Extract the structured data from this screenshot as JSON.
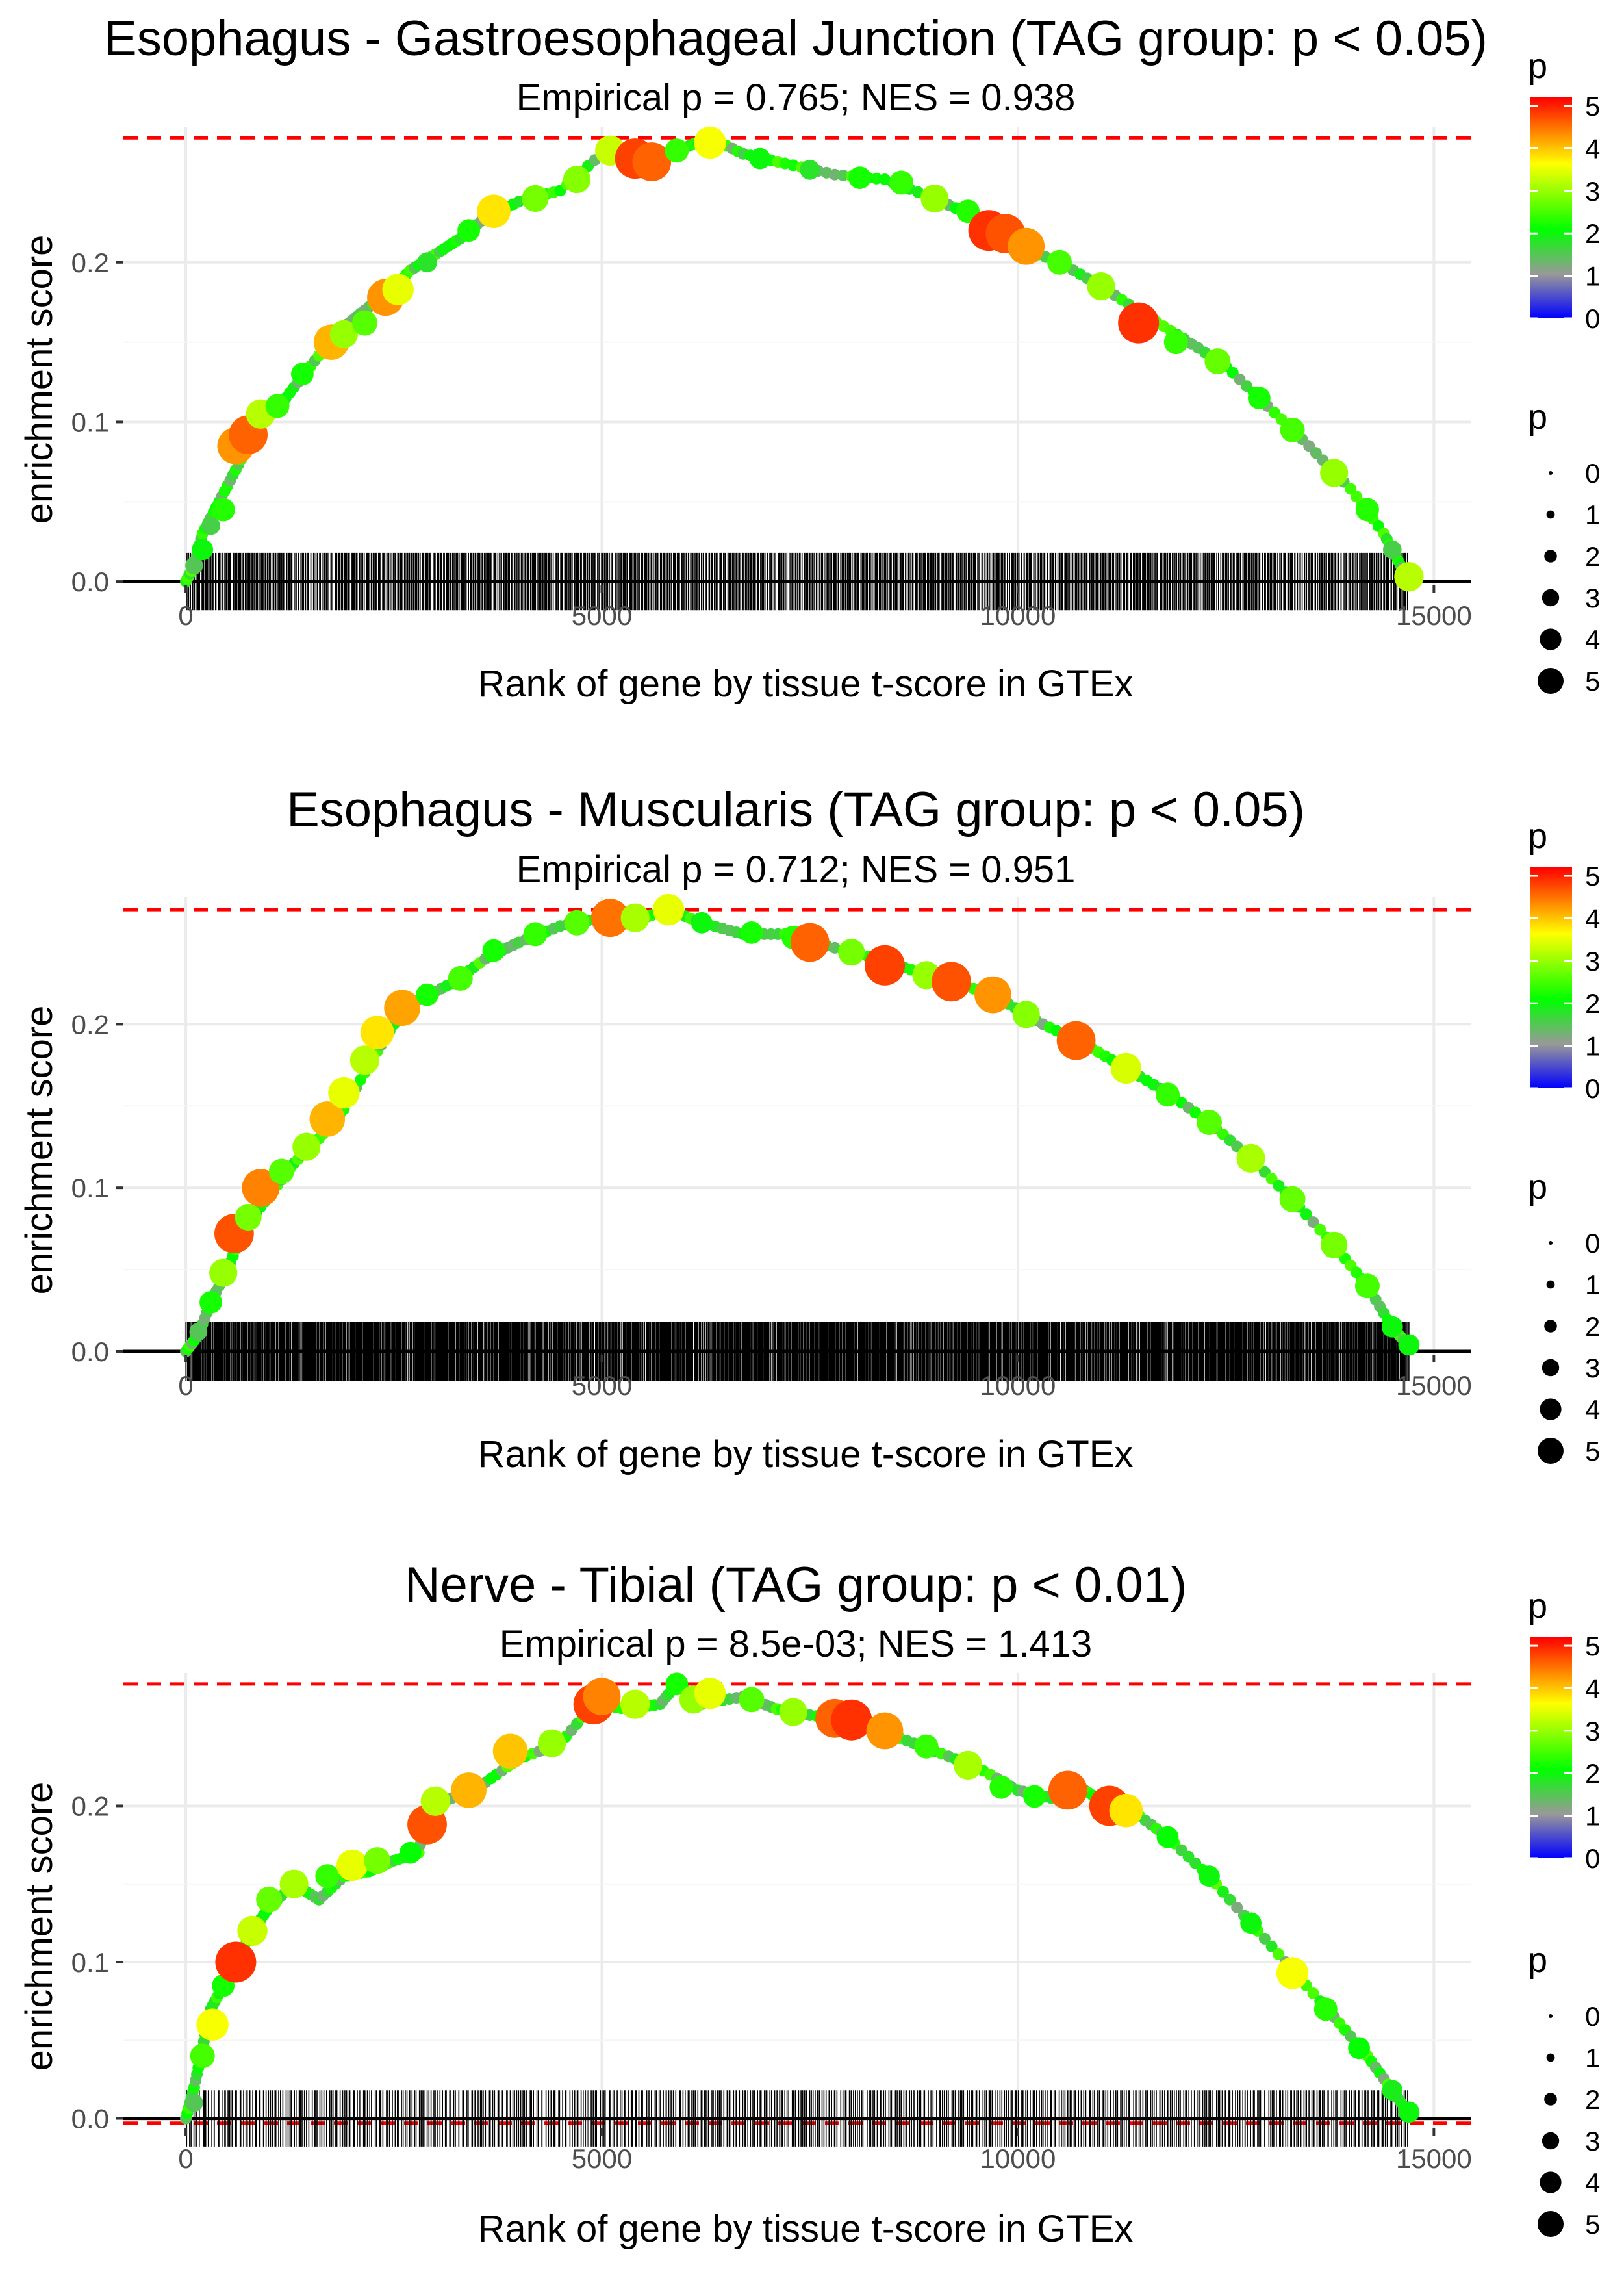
{
  "colors": {
    "max_line": "#ff0000",
    "zero_line": "#000000",
    "running_line": "#b3b3b3",
    "grid": "#ebebeb",
    "rug": "#000000",
    "gradient": [
      "#0000ff",
      "#999999",
      "#00ff00",
      "#ffff00",
      "#ff0000"
    ]
  },
  "chart_data": [
    {
      "type": "line",
      "title": "Esophagus - Gastroesophageal Junction (TAG group: p < 0.05)",
      "subtitle": "Empirical p = 0.765; NES = 0.938",
      "xlabel": "Rank of gene by tissue t-score in GTEx",
      "ylabel": "enrichment score",
      "xlim": [
        -750,
        15450
      ],
      "ylim": [
        -0.002,
        0.285
      ],
      "xticks": [
        0,
        5000,
        10000,
        15000
      ],
      "xtick_labels": [
        "0",
        "5000",
        "10000",
        "15000"
      ],
      "yticks": [
        0.0,
        0.1,
        0.2
      ],
      "ytick_labels": [
        "0.0",
        "0.1",
        "0.2"
      ],
      "max_es": 0.278,
      "min_es": 0.0,
      "n_genes": 14700,
      "rug_count": 900,
      "rug_height": 0.018,
      "curve": [
        [
          0,
          0
        ],
        [
          100,
          0.01
        ],
        [
          200,
          0.03
        ],
        [
          400,
          0.05
        ],
        [
          600,
          0.07
        ],
        [
          800,
          0.09
        ],
        [
          1000,
          0.105
        ],
        [
          1200,
          0.115
        ],
        [
          1500,
          0.135
        ],
        [
          1800,
          0.155
        ],
        [
          2100,
          0.168
        ],
        [
          2400,
          0.18
        ],
        [
          2700,
          0.195
        ],
        [
          3000,
          0.205
        ],
        [
          3300,
          0.215
        ],
        [
          3600,
          0.228
        ],
        [
          4000,
          0.238
        ],
        [
          4500,
          0.245
        ],
        [
          5000,
          0.268
        ],
        [
          5500,
          0.263
        ],
        [
          6000,
          0.272
        ],
        [
          6300,
          0.278
        ],
        [
          6700,
          0.268
        ],
        [
          7200,
          0.262
        ],
        [
          7800,
          0.255
        ],
        [
          8400,
          0.252
        ],
        [
          9000,
          0.24
        ],
        [
          9500,
          0.228
        ],
        [
          10000,
          0.21
        ],
        [
          10500,
          0.2
        ],
        [
          11000,
          0.185
        ],
        [
          11500,
          0.168
        ],
        [
          12000,
          0.152
        ],
        [
          12500,
          0.135
        ],
        [
          13000,
          0.11
        ],
        [
          13500,
          0.085
        ],
        [
          14000,
          0.058
        ],
        [
          14400,
          0.03
        ],
        [
          14600,
          0.01
        ],
        [
          14700,
          0.002
        ]
      ],
      "points": [
        [
          100,
          0.01,
          1.5
        ],
        [
          200,
          0.02,
          2.0
        ],
        [
          300,
          0.035,
          1.6
        ],
        [
          450,
          0.045,
          2.3
        ],
        [
          600,
          0.085,
          4.3
        ],
        [
          750,
          0.092,
          4.6
        ],
        [
          900,
          0.105,
          3.2
        ],
        [
          1100,
          0.11,
          2.4
        ],
        [
          1400,
          0.13,
          2.2
        ],
        [
          1750,
          0.15,
          4.1
        ],
        [
          1900,
          0.155,
          3.0
        ],
        [
          2150,
          0.162,
          2.6
        ],
        [
          2400,
          0.178,
          4.3
        ],
        [
          2550,
          0.183,
          3.5
        ],
        [
          2900,
          0.2,
          1.8
        ],
        [
          3400,
          0.22,
          2.2
        ],
        [
          3700,
          0.232,
          3.8
        ],
        [
          4200,
          0.24,
          2.8
        ],
        [
          4700,
          0.252,
          2.9
        ],
        [
          5100,
          0.27,
          3.3
        ],
        [
          5400,
          0.265,
          4.8
        ],
        [
          5600,
          0.263,
          4.6
        ],
        [
          5900,
          0.27,
          2.4
        ],
        [
          6300,
          0.275,
          3.6
        ],
        [
          6900,
          0.265,
          2.0
        ],
        [
          7500,
          0.258,
          1.8
        ],
        [
          8100,
          0.253,
          2.2
        ],
        [
          8600,
          0.25,
          2.4
        ],
        [
          9000,
          0.24,
          3.0
        ],
        [
          9400,
          0.232,
          2.3
        ],
        [
          9650,
          0.22,
          4.9
        ],
        [
          9850,
          0.218,
          4.7
        ],
        [
          10100,
          0.21,
          4.3
        ],
        [
          10500,
          0.2,
          2.5
        ],
        [
          11000,
          0.185,
          3.0
        ],
        [
          11450,
          0.162,
          4.9
        ],
        [
          11900,
          0.15,
          2.4
        ],
        [
          12400,
          0.138,
          2.7
        ],
        [
          12900,
          0.115,
          2.2
        ],
        [
          13300,
          0.095,
          2.5
        ],
        [
          13800,
          0.068,
          3.0
        ],
        [
          14200,
          0.045,
          2.3
        ],
        [
          14500,
          0.02,
          1.6
        ],
        [
          14700,
          0.003,
          3.2
        ]
      ],
      "color_legend": {
        "title": "p",
        "min": 0,
        "max": 5.2,
        "labels": [
          "0",
          "1",
          "2",
          "3",
          "4",
          "5"
        ]
      },
      "size_legend": {
        "title": "p",
        "labels": [
          "0",
          "1",
          "2",
          "3",
          "4",
          "5"
        ]
      }
    },
    {
      "type": "line",
      "title": "Esophagus - Muscularis (TAG group: p < 0.05)",
      "subtitle": "Empirical p = 0.712; NES = 0.951",
      "xlabel": "Rank of gene by tissue t-score in GTEx",
      "ylabel": "enrichment score",
      "xlim": [
        -750,
        15450
      ],
      "ylim": [
        -0.002,
        0.278
      ],
      "xticks": [
        0,
        5000,
        10000,
        15000
      ],
      "xtick_labels": [
        "0",
        "5000",
        "10000",
        "15000"
      ],
      "yticks": [
        0.0,
        0.1,
        0.2
      ],
      "ytick_labels": [
        "0.0",
        "0.1",
        "0.2"
      ],
      "max_es": 0.27,
      "min_es": 0.0,
      "n_genes": 14700,
      "rug_count": 1400,
      "rug_height": 0.018,
      "curve": [
        [
          0,
          0
        ],
        [
          150,
          0.01
        ],
        [
          300,
          0.03
        ],
        [
          500,
          0.05
        ],
        [
          700,
          0.075
        ],
        [
          1000,
          0.095
        ],
        [
          1300,
          0.115
        ],
        [
          1600,
          0.13
        ],
        [
          1900,
          0.148
        ],
        [
          2200,
          0.175
        ],
        [
          2500,
          0.2
        ],
        [
          2800,
          0.215
        ],
        [
          3200,
          0.225
        ],
        [
          3600,
          0.24
        ],
        [
          4000,
          0.25
        ],
        [
          4500,
          0.26
        ],
        [
          5000,
          0.265
        ],
        [
          5500,
          0.265
        ],
        [
          5800,
          0.27
        ],
        [
          6200,
          0.262
        ],
        [
          6700,
          0.255
        ],
        [
          7200,
          0.255
        ],
        [
          7700,
          0.248
        ],
        [
          8300,
          0.24
        ],
        [
          8800,
          0.232
        ],
        [
          9300,
          0.225
        ],
        [
          9800,
          0.215
        ],
        [
          10300,
          0.2
        ],
        [
          10800,
          0.188
        ],
        [
          11300,
          0.173
        ],
        [
          11800,
          0.158
        ],
        [
          12300,
          0.14
        ],
        [
          12800,
          0.118
        ],
        [
          13300,
          0.093
        ],
        [
          13800,
          0.065
        ],
        [
          14200,
          0.04
        ],
        [
          14500,
          0.015
        ],
        [
          14700,
          0.003
        ]
      ],
      "points": [
        [
          150,
          0.012,
          1.5
        ],
        [
          300,
          0.03,
          2.2
        ],
        [
          450,
          0.048,
          3.0
        ],
        [
          580,
          0.072,
          4.7
        ],
        [
          750,
          0.082,
          2.8
        ],
        [
          900,
          0.1,
          4.4
        ],
        [
          1150,
          0.11,
          2.6
        ],
        [
          1450,
          0.125,
          3.0
        ],
        [
          1700,
          0.142,
          4.1
        ],
        [
          1900,
          0.158,
          3.5
        ],
        [
          2150,
          0.178,
          3.2
        ],
        [
          2300,
          0.195,
          3.8
        ],
        [
          2600,
          0.21,
          4.2
        ],
        [
          2900,
          0.218,
          2.2
        ],
        [
          3300,
          0.228,
          2.5
        ],
        [
          3700,
          0.245,
          2.2
        ],
        [
          4200,
          0.255,
          2.4
        ],
        [
          4700,
          0.262,
          2.6
        ],
        [
          5100,
          0.265,
          4.5
        ],
        [
          5400,
          0.265,
          3.1
        ],
        [
          5800,
          0.27,
          3.5
        ],
        [
          6200,
          0.262,
          2.0
        ],
        [
          6800,
          0.256,
          2.2
        ],
        [
          7300,
          0.253,
          2.3
        ],
        [
          7500,
          0.25,
          4.6
        ],
        [
          8000,
          0.244,
          2.8
        ],
        [
          8400,
          0.236,
          4.8
        ],
        [
          8900,
          0.23,
          3.0
        ],
        [
          9200,
          0.226,
          4.7
        ],
        [
          9700,
          0.218,
          4.3
        ],
        [
          10100,
          0.206,
          2.9
        ],
        [
          10700,
          0.19,
          4.6
        ],
        [
          11300,
          0.173,
          3.4
        ],
        [
          11800,
          0.157,
          2.4
        ],
        [
          12300,
          0.14,
          2.6
        ],
        [
          12800,
          0.118,
          3.1
        ],
        [
          13300,
          0.093,
          2.7
        ],
        [
          13800,
          0.065,
          2.8
        ],
        [
          14200,
          0.04,
          2.5
        ],
        [
          14500,
          0.015,
          2.0
        ],
        [
          14700,
          0.004,
          2.0
        ]
      ],
      "color_legend": {
        "title": "p",
        "min": 0,
        "max": 5.2,
        "labels": [
          "0",
          "1",
          "2",
          "3",
          "4",
          "5"
        ]
      },
      "size_legend": {
        "title": "p",
        "labels": [
          "0",
          "1",
          "2",
          "3",
          "4",
          "5"
        ]
      }
    },
    {
      "type": "line",
      "title": "Nerve - Tibial (TAG group: p < 0.01)",
      "subtitle": "Empirical p = 8.5e-03; NES = 1.413",
      "xlabel": "Rank of gene by tissue t-score in GTEx",
      "ylabel": "enrichment score",
      "xlim": [
        -750,
        15450
      ],
      "ylim": [
        -0.006,
        0.285
      ],
      "xticks": [
        0,
        5000,
        10000,
        15000
      ],
      "xtick_labels": [
        "0",
        "5000",
        "10000",
        "15000"
      ],
      "yticks": [
        0.0,
        0.1,
        0.2
      ],
      "ytick_labels": [
        "0.0",
        "0.1",
        "0.2"
      ],
      "max_es": 0.278,
      "min_es": -0.003,
      "n_genes": 14700,
      "rug_count": 560,
      "rug_height": 0.018,
      "curve": [
        [
          0,
          0
        ],
        [
          100,
          0.02
        ],
        [
          200,
          0.045
        ],
        [
          300,
          0.07
        ],
        [
          450,
          0.085
        ],
        [
          600,
          0.1
        ],
        [
          800,
          0.12
        ],
        [
          1000,
          0.135
        ],
        [
          1300,
          0.15
        ],
        [
          1600,
          0.14
        ],
        [
          1900,
          0.155
        ],
        [
          2200,
          0.158
        ],
        [
          2500,
          0.165
        ],
        [
          2800,
          0.17
        ],
        [
          2900,
          0.2
        ],
        [
          3200,
          0.205
        ],
        [
          3600,
          0.215
        ],
        [
          4000,
          0.23
        ],
        [
          4500,
          0.24
        ],
        [
          4900,
          0.265
        ],
        [
          5300,
          0.262
        ],
        [
          5700,
          0.265
        ],
        [
          5900,
          0.278
        ],
        [
          6200,
          0.265
        ],
        [
          6700,
          0.27
        ],
        [
          7100,
          0.262
        ],
        [
          7500,
          0.258
        ],
        [
          8000,
          0.255
        ],
        [
          8500,
          0.245
        ],
        [
          9000,
          0.235
        ],
        [
          9500,
          0.225
        ],
        [
          10000,
          0.21
        ],
        [
          10400,
          0.205
        ],
        [
          10800,
          0.21
        ],
        [
          11100,
          0.2
        ],
        [
          11400,
          0.196
        ],
        [
          11800,
          0.18
        ],
        [
          12300,
          0.155
        ],
        [
          12800,
          0.125
        ],
        [
          13300,
          0.095
        ],
        [
          13800,
          0.065
        ],
        [
          14200,
          0.04
        ],
        [
          14500,
          0.018
        ],
        [
          14700,
          0.003
        ]
      ],
      "points": [
        [
          100,
          0.01,
          1.5
        ],
        [
          200,
          0.04,
          2.5
        ],
        [
          320,
          0.06,
          3.6
        ],
        [
          450,
          0.085,
          2.2
        ],
        [
          600,
          0.1,
          4.9
        ],
        [
          800,
          0.12,
          3.3
        ],
        [
          1000,
          0.14,
          2.7
        ],
        [
          1300,
          0.15,
          3.1
        ],
        [
          1700,
          0.155,
          2.4
        ],
        [
          2000,
          0.162,
          3.5
        ],
        [
          2300,
          0.165,
          2.8
        ],
        [
          2700,
          0.17,
          2.1
        ],
        [
          2900,
          0.188,
          4.7
        ],
        [
          3000,
          0.203,
          3.2
        ],
        [
          3400,
          0.21,
          4.1
        ],
        [
          3900,
          0.235,
          4.0
        ],
        [
          4400,
          0.24,
          3.0
        ],
        [
          4900,
          0.265,
          4.8
        ],
        [
          5000,
          0.27,
          4.4
        ],
        [
          5400,
          0.265,
          3.2
        ],
        [
          5900,
          0.278,
          2.2
        ],
        [
          6100,
          0.268,
          3.0
        ],
        [
          6300,
          0.272,
          3.5
        ],
        [
          6800,
          0.268,
          2.6
        ],
        [
          7300,
          0.26,
          3.0
        ],
        [
          7800,
          0.256,
          4.6
        ],
        [
          8000,
          0.255,
          4.9
        ],
        [
          8400,
          0.248,
          4.3
        ],
        [
          8900,
          0.238,
          2.4
        ],
        [
          9400,
          0.226,
          3.1
        ],
        [
          9800,
          0.212,
          2.3
        ],
        [
          10200,
          0.206,
          2.2
        ],
        [
          10600,
          0.21,
          4.6
        ],
        [
          11100,
          0.2,
          4.8
        ],
        [
          11300,
          0.197,
          3.8
        ],
        [
          11800,
          0.18,
          2.1
        ],
        [
          12300,
          0.155,
          2.0
        ],
        [
          12800,
          0.125,
          2.0
        ],
        [
          13300,
          0.093,
          3.6
        ],
        [
          13700,
          0.07,
          2.3
        ],
        [
          14100,
          0.045,
          2.1
        ],
        [
          14500,
          0.018,
          1.9
        ],
        [
          14700,
          0.004,
          2.0
        ]
      ],
      "color_legend": {
        "title": "p",
        "min": 0,
        "max": 5.2,
        "labels": [
          "0",
          "1",
          "2",
          "3",
          "4",
          "5"
        ]
      },
      "size_legend": {
        "title": "p",
        "labels": [
          "0",
          "1",
          "2",
          "3",
          "4",
          "5"
        ]
      }
    }
  ]
}
